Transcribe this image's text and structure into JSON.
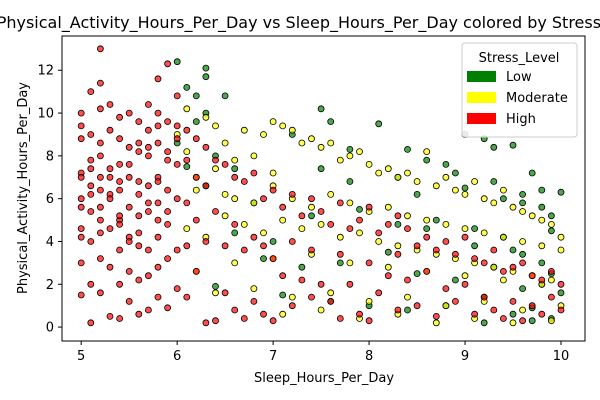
{
  "chart_data": {
    "type": "scatter",
    "title": "Physical_Activity_Hours_Per_Day vs Sleep_Hours_Per_Day colored by Stress_Level",
    "xlabel": "Sleep_Hours_Per_Day",
    "ylabel": "Physical_Activity_Hours_Per_Day",
    "xlim": [
      4.8,
      10.25
    ],
    "ylim": [
      -0.65,
      13.6
    ],
    "xticks": [
      5,
      6,
      7,
      8,
      9,
      10
    ],
    "yticks": [
      0,
      2,
      4,
      6,
      8,
      10,
      12
    ],
    "grid": false,
    "legend": {
      "title": "Stress_Level",
      "placement": "top-right",
      "entries": [
        {
          "label": "Low",
          "color": "#008000"
        },
        {
          "label": "Moderate",
          "color": "#ffff00"
        },
        {
          "label": "High",
          "color": "#ff0000"
        }
      ]
    },
    "series": [
      {
        "name": "Low",
        "color": "#008000",
        "x": [
          6.0,
          6.1,
          6.2,
          6.2,
          6.3,
          6.3,
          6.3,
          6.5,
          6.0,
          6.4,
          6.1,
          6.3,
          6.6,
          6.8,
          7.2,
          7.5,
          7.6,
          7.8,
          8.1,
          8.4,
          8.6,
          8.8,
          9.0,
          9.2,
          9.3,
          9.5,
          9.7,
          9.8,
          10.0,
          6.6,
          7.0,
          7.4,
          7.9,
          8.3,
          8.7,
          9.1,
          9.4,
          9.6,
          9.9,
          6.9,
          7.3,
          7.7,
          8.2,
          8.5,
          8.9,
          9.3,
          9.6,
          9.8,
          10.0,
          6.4,
          7.1,
          7.6,
          8.0,
          8.4,
          8.8,
          9.2,
          9.5,
          9.7,
          9.9,
          7.8,
          8.5,
          9.0,
          9.4,
          9.8,
          8.3,
          8.9,
          9.3,
          9.6,
          9.9,
          9.1,
          9.5,
          9.8,
          9.6,
          9.9,
          7.5,
          8.6,
          9.2,
          9.7
        ],
        "y": [
          12.4,
          11.2,
          10.8,
          9.6,
          12.1,
          11.7,
          10.0,
          10.8,
          8.6,
          8.0,
          7.5,
          6.6,
          7.4,
          5.8,
          9.0,
          10.2,
          9.6,
          8.3,
          9.5,
          8.3,
          7.8,
          7.6,
          9.0,
          8.8,
          8.4,
          8.5,
          7.2,
          6.4,
          6.3,
          4.4,
          4.0,
          5.2,
          5.5,
          4.8,
          5.0,
          4.6,
          4.2,
          5.8,
          4.5,
          3.2,
          2.8,
          3.0,
          3.5,
          2.5,
          2.2,
          2.8,
          3.4,
          2.0,
          1.6,
          1.9,
          1.5,
          1.2,
          1.0,
          0.8,
          1.0,
          1.4,
          0.6,
          0.9,
          0.4,
          6.8,
          6.2,
          6.5,
          6.0,
          5.6,
          7.0,
          7.2,
          6.8,
          6.2,
          5.2,
          3.8,
          3.6,
          3.0,
          1.8,
          2.5,
          7.4,
          4.6,
          0.2,
          0.3
        ]
      },
      {
        "name": "Moderate",
        "color": "#ffff00",
        "x": [
          6.0,
          6.1,
          6.1,
          6.2,
          6.3,
          6.4,
          6.5,
          6.5,
          6.6,
          6.7,
          6.8,
          6.9,
          7.0,
          7.0,
          7.1,
          7.2,
          7.3,
          7.4,
          7.5,
          7.6,
          7.7,
          7.8,
          7.9,
          8.0,
          8.1,
          8.2,
          8.3,
          8.4,
          8.5,
          8.6,
          8.7,
          8.8,
          8.9,
          9.0,
          9.1,
          9.2,
          9.3,
          9.4,
          9.5,
          9.6,
          9.7,
          9.8,
          9.9,
          10.0,
          6.2,
          6.4,
          6.6,
          6.8,
          7.0,
          7.2,
          7.4,
          7.6,
          7.8,
          8.0,
          8.2,
          8.4,
          8.6,
          8.8,
          9.0,
          9.2,
          9.4,
          9.6,
          9.8,
          10.0,
          6.1,
          6.3,
          6.5,
          6.7,
          6.9,
          7.1,
          7.3,
          7.5,
          7.7,
          7.9,
          8.1,
          8.3,
          8.5,
          8.7,
          8.9,
          9.1,
          9.3,
          9.5,
          9.7,
          9.9,
          6.2,
          6.6,
          7.0,
          7.4,
          7.8,
          8.2,
          8.6,
          9.0,
          9.4,
          9.8,
          6.4,
          6.8,
          7.2,
          7.6,
          8.0,
          8.4,
          8.8,
          9.2,
          9.6,
          10.0,
          7.1,
          7.5,
          7.9,
          8.3,
          8.7,
          9.1,
          9.5,
          9.9
        ],
        "y": [
          9.0,
          10.2,
          8.2,
          7.0,
          9.8,
          9.4,
          8.6,
          6.2,
          7.8,
          9.2,
          8.0,
          9.0,
          9.6,
          7.2,
          9.4,
          9.2,
          8.6,
          8.8,
          8.4,
          8.6,
          7.8,
          8.0,
          8.2,
          7.6,
          7.2,
          7.4,
          7.0,
          7.2,
          6.8,
          8.2,
          6.6,
          7.0,
          6.4,
          6.2,
          6.8,
          6.0,
          5.8,
          6.4,
          5.6,
          5.4,
          5.2,
          5.0,
          4.8,
          4.2,
          6.4,
          7.4,
          6.0,
          5.8,
          6.6,
          6.0,
          5.6,
          6.2,
          5.8,
          5.4,
          5.6,
          5.2,
          5.0,
          4.8,
          4.6,
          4.4,
          4.2,
          4.0,
          3.8,
          3.6,
          4.6,
          4.2,
          5.2,
          4.8,
          4.4,
          5.0,
          4.6,
          4.8,
          4.2,
          4.4,
          4.0,
          3.8,
          3.6,
          3.4,
          3.2,
          3.0,
          2.8,
          2.6,
          2.4,
          2.2,
          2.6,
          3.0,
          3.2,
          3.4,
          3.0,
          2.8,
          2.6,
          2.4,
          2.2,
          2.0,
          1.6,
          1.8,
          1.4,
          1.6,
          1.2,
          1.4,
          1.0,
          1.2,
          0.8,
          1.0,
          0.6,
          0.8,
          0.4,
          0.6,
          0.2,
          0.4,
          0.2,
          0.3
        ]
      },
      {
        "name": "High",
        "color": "#ff0000",
        "x": [
          5.0,
          5.0,
          5.0,
          5.0,
          5.0,
          5.0,
          5.0,
          5.0,
          5.1,
          5.1,
          5.1,
          5.1,
          5.1,
          5.1,
          5.1,
          5.1,
          5.2,
          5.2,
          5.2,
          5.2,
          5.2,
          5.2,
          5.2,
          5.2,
          5.2,
          5.3,
          5.3,
          5.3,
          5.3,
          5.3,
          5.3,
          5.3,
          5.4,
          5.4,
          5.4,
          5.4,
          5.4,
          5.4,
          5.4,
          5.4,
          5.5,
          5.5,
          5.5,
          5.5,
          5.5,
          5.5,
          5.5,
          5.6,
          5.6,
          5.6,
          5.6,
          5.6,
          5.6,
          5.6,
          5.7,
          5.7,
          5.7,
          5.7,
          5.7,
          5.7,
          5.7,
          5.7,
          5.8,
          5.8,
          5.8,
          5.8,
          5.8,
          5.8,
          5.8,
          5.8,
          5.9,
          5.9,
          5.9,
          5.9,
          5.9,
          5.9,
          5.9,
          6.0,
          6.0,
          6.0,
          6.0,
          6.0,
          6.0,
          6.1,
          6.1,
          6.1,
          6.1,
          6.1,
          6.2,
          6.2,
          6.2,
          6.2,
          6.3,
          6.3,
          6.3,
          6.3,
          6.4,
          6.4,
          6.4,
          6.5,
          6.5,
          6.5,
          6.6,
          6.6,
          6.6,
          6.7,
          6.7,
          6.7,
          6.8,
          6.8,
          6.8,
          6.9,
          6.9,
          6.9,
          7.0,
          7.0,
          7.0,
          7.1,
          7.1,
          7.2,
          7.2,
          7.2,
          7.3,
          7.3,
          7.4,
          7.4,
          7.4,
          7.5,
          7.5,
          7.6,
          7.6,
          7.7,
          7.7,
          7.7,
          7.8,
          7.8,
          7.9,
          7.9,
          8.0,
          8.0,
          8.0,
          8.1,
          8.1,
          8.2,
          8.2,
          8.3,
          8.3,
          8.3,
          8.4,
          8.4,
          8.5,
          8.5,
          8.6,
          8.6,
          8.7,
          8.7,
          8.8,
          8.8,
          8.9,
          8.9,
          9.0,
          9.0,
          9.1,
          9.1,
          9.2,
          9.2,
          9.3,
          9.3,
          9.4,
          9.4,
          9.5,
          9.5,
          9.6,
          9.6,
          9.7,
          9.7,
          9.8,
          9.8,
          9.9,
          9.9,
          10.0,
          10.0,
          5.0,
          5.2,
          5.4,
          5.6,
          5.8,
          5.1,
          5.3,
          5.5,
          5.7,
          5.9,
          5.0,
          5.2,
          5.4,
          5.6,
          5.8,
          6.0,
          5.1,
          5.3,
          5.5,
          5.7,
          5.9,
          5.0,
          5.2,
          5.4,
          5.6,
          5.8
        ],
        "y": [
          10.0,
          9.4,
          8.8,
          7.2,
          6.0,
          4.2,
          3.0,
          1.5,
          11.0,
          9.0,
          7.8,
          6.6,
          5.4,
          4.0,
          2.0,
          0.2,
          13.0,
          11.4,
          10.2,
          8.6,
          7.0,
          5.6,
          4.4,
          3.2,
          1.6,
          10.4,
          9.2,
          7.4,
          6.2,
          4.6,
          2.8,
          0.5,
          9.8,
          8.8,
          7.6,
          6.4,
          5.0,
          3.6,
          2.0,
          0.4,
          10.0,
          8.4,
          7.0,
          5.6,
          4.2,
          2.6,
          1.2,
          9.6,
          8.2,
          6.8,
          5.2,
          3.8,
          2.2,
          0.6,
          10.4,
          9.2,
          8.0,
          6.6,
          5.4,
          3.6,
          2.4,
          0.8,
          11.6,
          10.0,
          8.6,
          7.0,
          5.8,
          4.2,
          2.8,
          1.4,
          12.3,
          9.6,
          8.2,
          6.4,
          4.8,
          3.2,
          0.9,
          10.8,
          9.4,
          7.6,
          6.0,
          3.6,
          1.8,
          9.2,
          7.8,
          5.8,
          3.8,
          1.4,
          8.8,
          7.0,
          5.0,
          2.6,
          8.4,
          6.6,
          4.0,
          0.2,
          7.8,
          5.4,
          0.3,
          7.6,
          3.8,
          1.6,
          7.0,
          4.8,
          0.8,
          6.8,
          3.6,
          0.4,
          7.2,
          4.2,
          1.2,
          6.0,
          3.8,
          0.6,
          6.4,
          3.2,
          0.3,
          5.6,
          2.4,
          6.2,
          4.0,
          1.0,
          5.2,
          2.2,
          6.0,
          3.6,
          1.4,
          5.4,
          2.0,
          4.8,
          1.2,
          5.8,
          3.4,
          0.4,
          4.6,
          2.0,
          5.0,
          0.6,
          5.6,
          3.0,
          0.3,
          4.4,
          1.6,
          4.8,
          2.4,
          5.2,
          3.4,
          0.8,
          4.6,
          2.2,
          3.8,
          1.0,
          4.2,
          2.6,
          3.6,
          0.5,
          4.0,
          1.8,
          3.4,
          1.2,
          4.2,
          2.0,
          3.2,
          0.6,
          3.0,
          1.4,
          3.6,
          0.8,
          2.6,
          0.4,
          2.8,
          1.2,
          3.0,
          0.3,
          2.4,
          1.0,
          2.2,
          0.6,
          2.6,
          1.4,
          2.0,
          0.8,
          7.0,
          8.0,
          6.8,
          8.6,
          9.4,
          7.4,
          6.0,
          7.6,
          8.4,
          5.4,
          5.6,
          6.4,
          5.2,
          4.4,
          6.8,
          8.8,
          6.2,
          7.0,
          4.0,
          5.8,
          7.8,
          4.6,
          5.0,
          4.8,
          6.2,
          5.0
        ]
      }
    ]
  }
}
